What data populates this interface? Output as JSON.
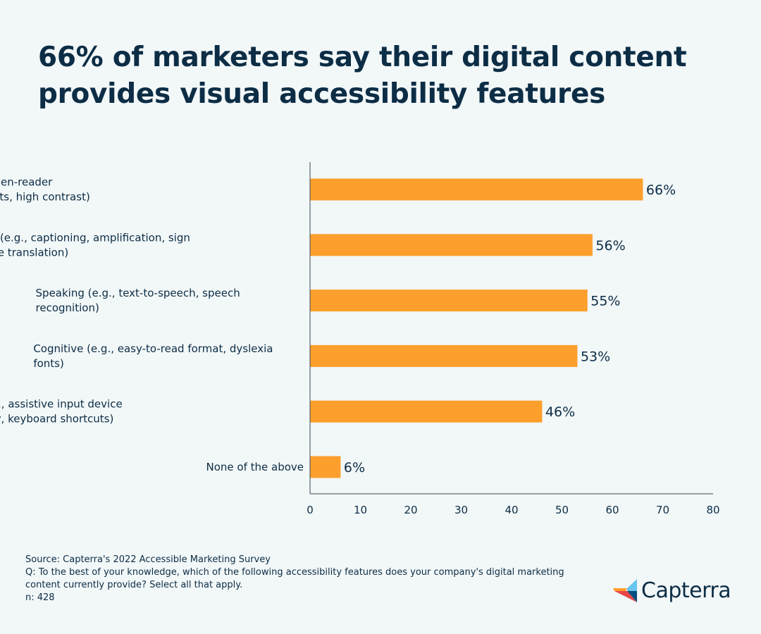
{
  "chart_data": {
    "type": "bar",
    "orientation": "horizontal",
    "title": "66% of marketers say their digital content provides visual accessibility features",
    "categories": [
      [
        "Visual (e.g., enlargement, screen-reader",
        "compatibility, color adjustments, high contrast)"
      ],
      [
        "Hearing (e.g., captioning, amplification, sign",
        "language translation)"
      ],
      [
        "Speaking (e.g., text-to-speech, speech",
        "recognition)"
      ],
      [
        "Cognitive (e.g., easy-to-read format, dyslexia",
        "fonts)"
      ],
      [
        "Mobility (e.g., assistive input device",
        "compatibility, keyboard shortcuts)"
      ],
      [
        "None of the above"
      ]
    ],
    "values": [
      66,
      56,
      55,
      53,
      46,
      6
    ],
    "value_labels": [
      "66%",
      "56%",
      "55%",
      "53%",
      "46%",
      "6%"
    ],
    "xlim": [
      0,
      80
    ],
    "xticks": [
      0,
      10,
      20,
      30,
      40,
      50,
      60,
      70,
      80
    ],
    "bar_color": "#fd9f2c",
    "grid": false,
    "legend": "none"
  },
  "footer": {
    "source": "Source: Capterra's 2022 Accessible Marketing Survey",
    "question_line1": "Q: To the best of your knowledge, which of the following accessibility features does your company's digital marketing",
    "question_line2": "content currently provide? Select all that apply.",
    "n": "n: 428"
  },
  "brand": {
    "name": "Capterra",
    "colors": [
      "#ff9d28",
      "#68c5ed",
      "#044d80",
      "#e54747"
    ]
  }
}
